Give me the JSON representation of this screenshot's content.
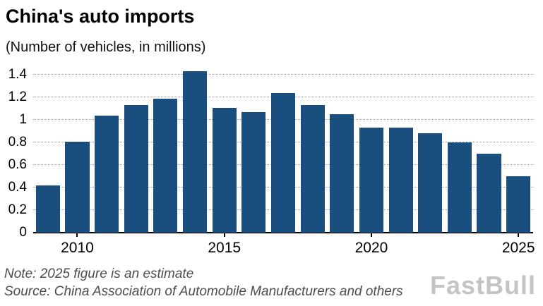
{
  "title": "China's auto imports",
  "subtitle": "(Number of vehicles, in millions)",
  "note": "Note: 2025 figure is an estimate",
  "source": "Source: China Association of Automobile Manufacturers and others",
  "watermark": "FastBull",
  "colors": {
    "bar": "#1a4e7e",
    "grid": "#9a9a9a",
    "axis": "#000000",
    "note_text": "#4d4d4d"
  },
  "chart_data": {
    "type": "bar",
    "title": "China's auto imports",
    "subtitle": "(Number of vehicles, in millions)",
    "categories": [
      "2009",
      "2010",
      "2011",
      "2012",
      "2013",
      "2014",
      "2015",
      "2016",
      "2017",
      "2018",
      "2019",
      "2020",
      "2021",
      "2022",
      "2023",
      "2024",
      "2025"
    ],
    "values": [
      0.42,
      0.81,
      1.04,
      1.13,
      1.19,
      1.43,
      1.11,
      1.07,
      1.24,
      1.13,
      1.05,
      0.93,
      0.93,
      0.88,
      0.8,
      0.7,
      0.5
    ],
    "xlabel": "",
    "ylabel": "Number of vehicles, in millions",
    "ylim": [
      0,
      1.47
    ],
    "yticks": [
      0,
      0.2,
      0.4,
      0.6,
      0.8,
      1,
      1.2,
      1.4
    ],
    "ytick_labels": [
      "0",
      "0.2",
      "0.4",
      "0.6",
      "0.8",
      "1",
      "1.2",
      "1.4"
    ],
    "xtick_labels": [
      "2010",
      "2015",
      "2020",
      "2025"
    ],
    "grid": true,
    "legend": false
  }
}
